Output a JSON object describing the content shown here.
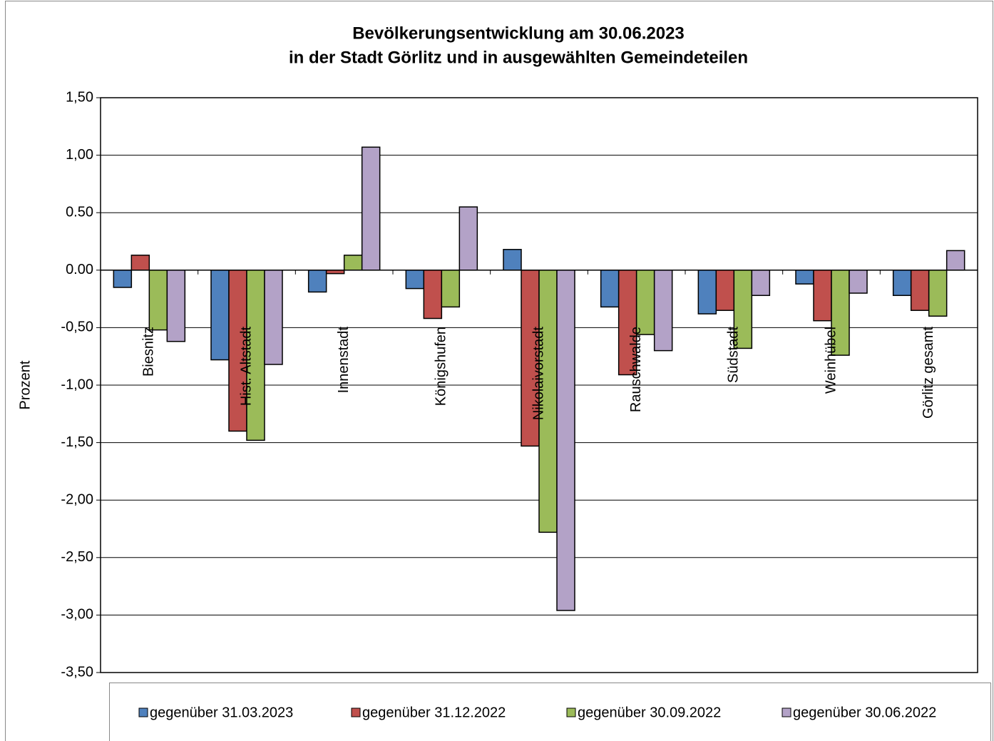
{
  "chart_data": {
    "type": "bar",
    "title": "Bevölkerungsentwicklung am 30.06.2023",
    "subtitle": "in der Stadt Görlitz und in ausgewählten Gemeindeteilen",
    "y_label": "Prozent",
    "categories": [
      "Biesnitz",
      "Hist. Altstadt",
      "Innenstadt",
      "Königshufen",
      "Nikolaivorstadt",
      "Rauschwalde",
      "Südstadt",
      "Weinhübel",
      "Görlitz gesamt"
    ],
    "series": [
      {
        "name": "gegenüber 31.03.2023",
        "color": "#4f81bd",
        "values": [
          -0.15,
          -0.78,
          -0.19,
          -0.16,
          0.18,
          -0.32,
          -0.38,
          -0.12,
          -0.22
        ]
      },
      {
        "name": "gegenüber 31.12.2022",
        "color": "#c0504d",
        "values": [
          0.13,
          -1.4,
          -0.03,
          -0.42,
          -1.53,
          -0.91,
          -0.35,
          -0.44,
          -0.35
        ]
      },
      {
        "name": "gegenüber 30.09.2022",
        "color": "#9bbb59",
        "values": [
          -0.52,
          -1.48,
          0.13,
          -0.32,
          -2.28,
          -0.56,
          -0.68,
          -0.74,
          -0.4
        ]
      },
      {
        "name": "gegenüber 30.06.2022",
        "color": "#b3a2c7",
        "values": [
          -0.62,
          -0.82,
          1.07,
          0.55,
          -2.96,
          -0.7,
          -0.22,
          -0.2,
          0.17
        ]
      }
    ],
    "ylim": [
      -3.5,
      1.5
    ],
    "yticks": [
      {
        "value": -3.5,
        "label": "-3,50"
      },
      {
        "value": -3.0,
        "label": "-3,00"
      },
      {
        "value": -2.5,
        "label": "-2,50"
      },
      {
        "value": -2.0,
        "label": "-2,00"
      },
      {
        "value": -1.5,
        "label": "-1,50"
      },
      {
        "value": -1.0,
        "label": "-1,00"
      },
      {
        "value": -0.5,
        "label": "-0,50"
      },
      {
        "value": 0,
        "label": "0.00"
      },
      {
        "value": 0.5,
        "label": "0.50"
      },
      {
        "value": 1.0,
        "label": "1,00"
      },
      {
        "value": 1.5,
        "label": "1,50"
      }
    ],
    "grid": true
  }
}
